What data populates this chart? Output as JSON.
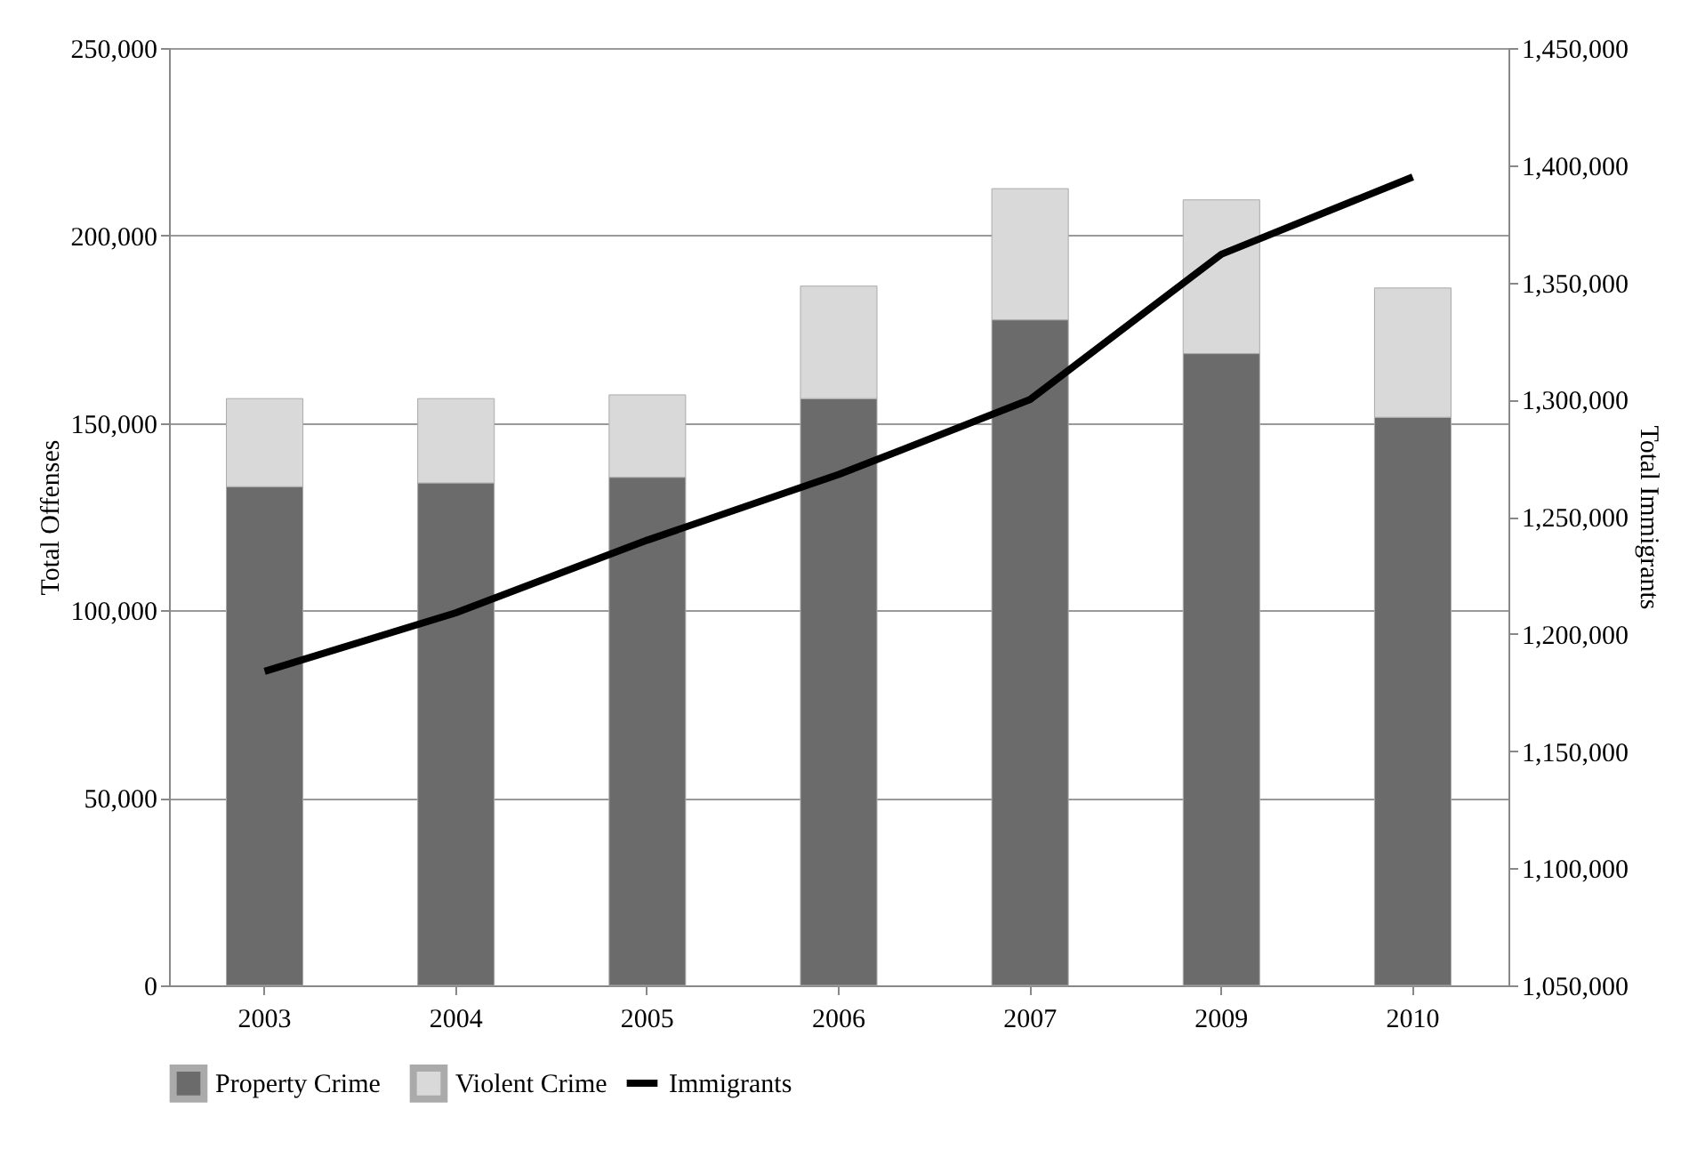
{
  "chart_data": {
    "type": "bar",
    "stacked": true,
    "categories": [
      "2003",
      "2004",
      "2005",
      "2006",
      "2007",
      "2009",
      "2010"
    ],
    "ylabel": "Total Offenses",
    "y2label": "Total Immigrants",
    "ylim": [
      0,
      250000
    ],
    "yticks": [
      0,
      {
        "value": 50000,
        "label": "50,000"
      },
      {
        "value": 100000,
        "label": "100,000"
      },
      {
        "value": 150000,
        "label": "150,000"
      },
      {
        "value": 200000,
        "label": "200,000"
      },
      {
        "value": 250000,
        "label": "250,000"
      }
    ],
    "y2lim": [
      1050000,
      1450000
    ],
    "y2ticks": [
      {
        "value": 1050000,
        "label": "1,050,000"
      },
      {
        "value": 1100000,
        "label": "1,100,000"
      },
      {
        "value": 1150000,
        "label": "1,150,000"
      },
      {
        "value": 1200000,
        "label": "1,200,000"
      },
      {
        "value": 1250000,
        "label": "1,250,000"
      },
      {
        "value": 1300000,
        "label": "1,300,000"
      },
      {
        "value": 1350000,
        "label": "1,350,000"
      },
      {
        "value": 1400000,
        "label": "1,400,000"
      },
      {
        "value": 1450000,
        "label": "1,450,000"
      }
    ],
    "grid": "y",
    "legend": "bottom",
    "series": [
      {
        "name": "Property Crime",
        "color": "#6b6b6b",
        "values": [
          133000,
          134000,
          135500,
          156500,
          177500,
          168500,
          151500
        ]
      },
      {
        "name": "Violent Crime",
        "color": "#d9d9d9",
        "values": [
          23500,
          22500,
          22000,
          30000,
          35000,
          41000,
          34500
        ]
      },
      {
        "name": "Immigrants",
        "type": "line",
        "axis": "y2",
        "color": "#000000",
        "values": [
          1184000,
          1209000,
          1240000,
          1268000,
          1300000,
          1362000,
          1395000
        ]
      }
    ]
  }
}
